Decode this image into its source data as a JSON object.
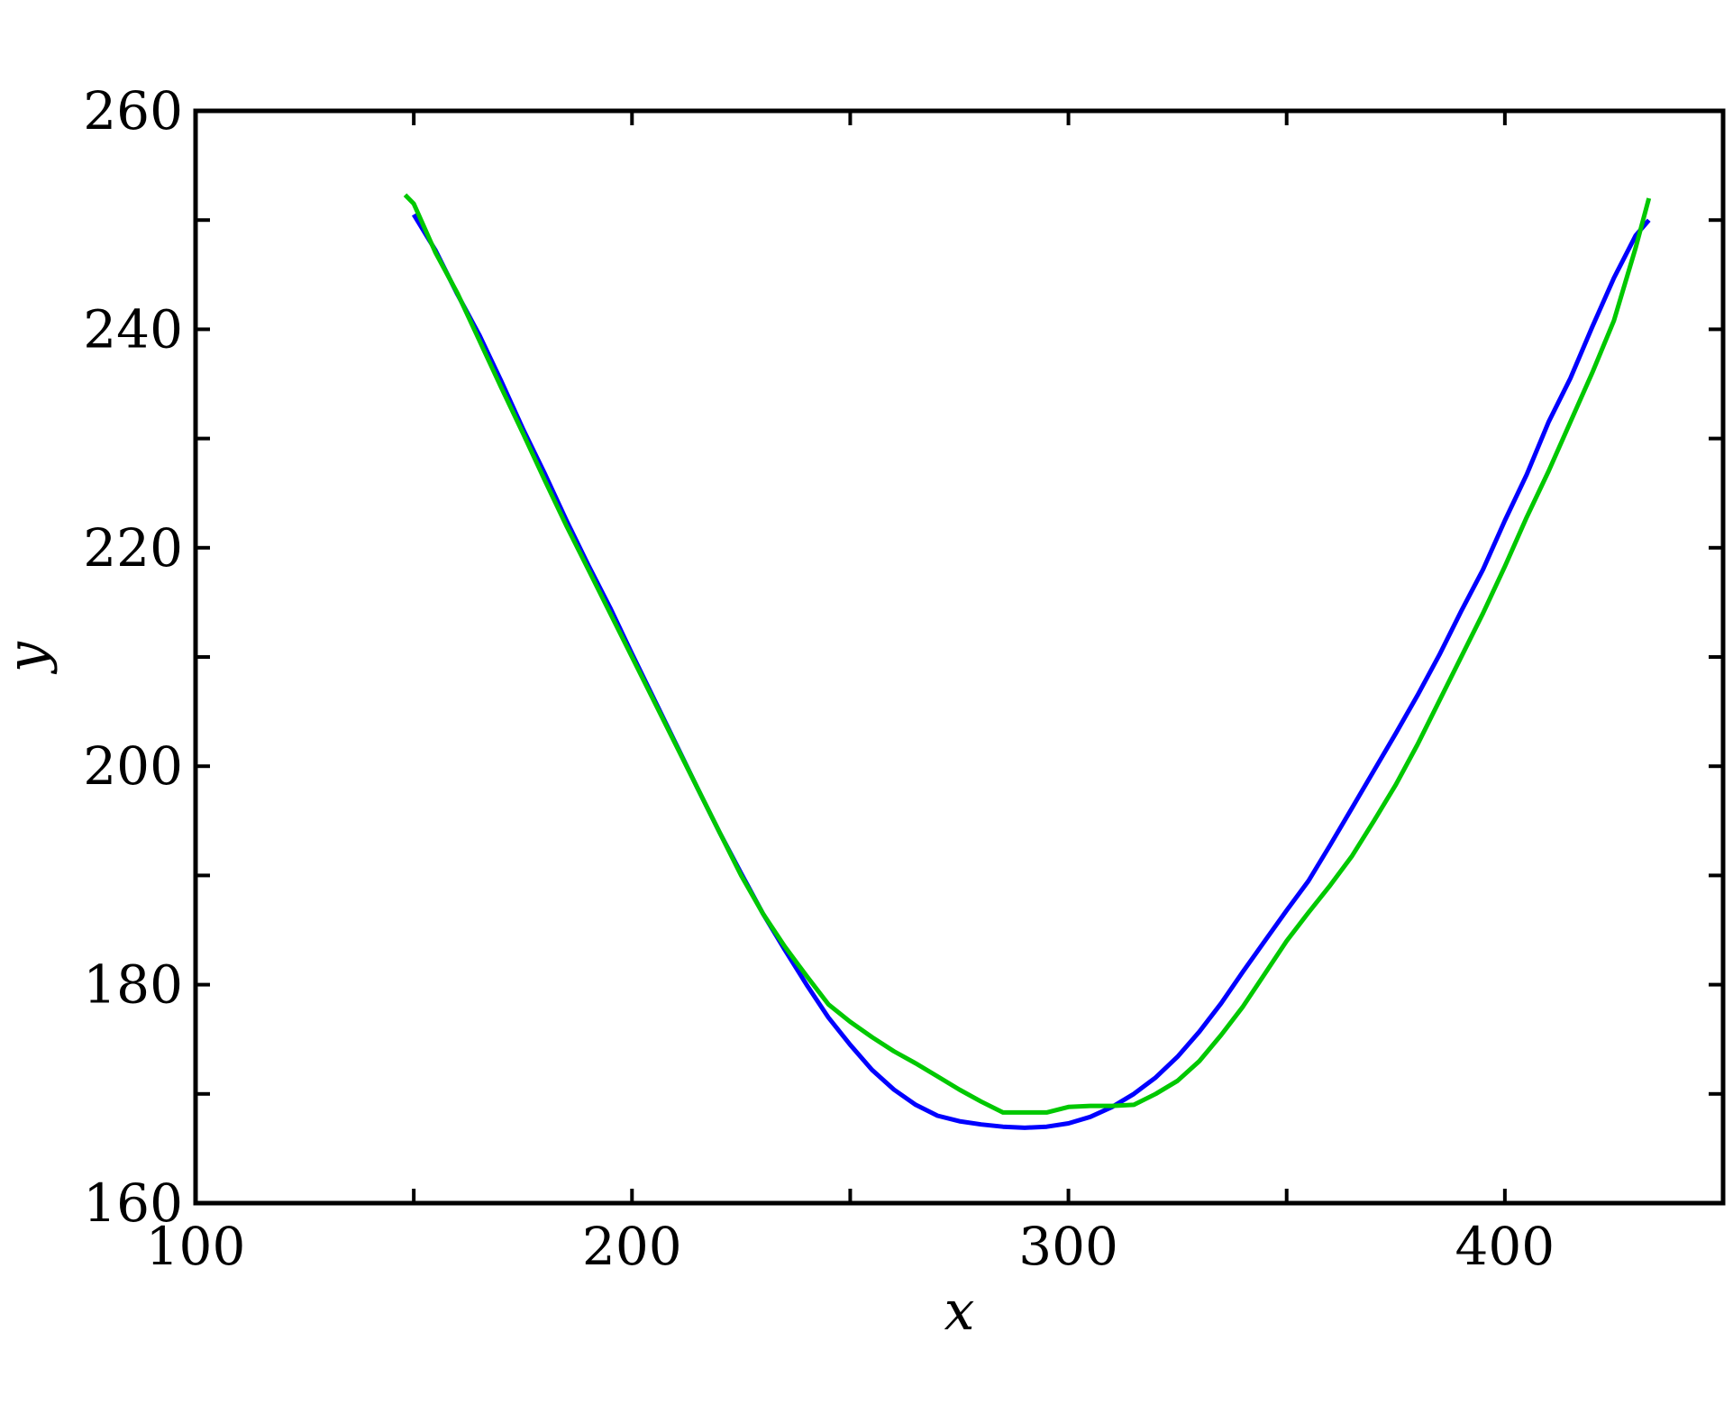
{
  "chart_data": {
    "type": "line",
    "title": "",
    "xlabel": "x",
    "ylabel": "y",
    "xlim": [
      100,
      450
    ],
    "ylim": [
      160,
      260
    ],
    "xticks": [
      100,
      200,
      300,
      400
    ],
    "yticks": [
      160,
      180,
      200,
      220,
      240,
      260
    ],
    "xtick_minor": [
      150,
      250,
      350
    ],
    "ytick_minor": [
      170,
      190,
      210,
      230,
      250
    ],
    "grid": false,
    "legend": "none",
    "series": [
      {
        "color": "#0000ff",
        "x": [
          150,
          155,
          160,
          165,
          170,
          175,
          180,
          185,
          190,
          195,
          200,
          205,
          210,
          215,
          220,
          225,
          230,
          235,
          240,
          245,
          250,
          255,
          260,
          265,
          270,
          275,
          280,
          285,
          290,
          295,
          300,
          305,
          310,
          315,
          320,
          325,
          330,
          335,
          340,
          345,
          350,
          355,
          360,
          365,
          370,
          375,
          380,
          385,
          390,
          395,
          400,
          405,
          410,
          415,
          420,
          425,
          430,
          433
        ],
        "y": [
          250.5,
          247.2,
          243.2,
          239.5,
          235.3,
          230.9,
          226.8,
          222.5,
          218.4,
          214.5,
          210.3,
          206.2,
          202.1,
          198.0,
          194.0,
          190.2,
          186.5,
          183.2,
          180.0,
          177.0,
          174.5,
          172.2,
          170.4,
          169.0,
          168.0,
          167.5,
          167.2,
          167.0,
          166.9,
          167.0,
          167.3,
          167.9,
          168.8,
          170.0,
          171.5,
          173.4,
          175.7,
          178.3,
          181.2,
          184.0,
          186.8,
          189.5,
          192.8,
          196.2,
          199.6,
          203.0,
          206.5,
          210.2,
          214.2,
          218.0,
          222.5,
          226.7,
          231.5,
          235.5,
          240.2,
          244.7,
          248.6,
          250.0
        ]
      },
      {
        "color": "#00c800",
        "x": [
          148,
          150,
          155,
          160,
          165,
          170,
          175,
          180,
          185,
          190,
          195,
          200,
          205,
          210,
          215,
          220,
          225,
          230,
          235,
          240,
          245,
          250,
          255,
          260,
          265,
          270,
          275,
          280,
          285,
          290,
          295,
          300,
          305,
          310,
          315,
          320,
          325,
          330,
          335,
          340,
          345,
          350,
          355,
          360,
          365,
          370,
          375,
          380,
          385,
          390,
          395,
          400,
          405,
          410,
          415,
          420,
          425,
          430,
          433
        ],
        "y": [
          252.3,
          251.5,
          247.0,
          243.3,
          239.0,
          234.7,
          230.5,
          226.2,
          222.0,
          218.0,
          214.0,
          210.0,
          206.0,
          202.0,
          198.0,
          194.0,
          190.0,
          186.5,
          183.5,
          180.8,
          178.2,
          176.6,
          175.2,
          173.9,
          172.8,
          171.6,
          170.4,
          169.3,
          168.3,
          168.3,
          168.3,
          168.8,
          168.9,
          168.9,
          169.0,
          170.0,
          171.2,
          173.0,
          175.4,
          178.0,
          181.0,
          184.0,
          186.6,
          189.1,
          191.8,
          195.0,
          198.3,
          202.0,
          206.0,
          210.0,
          214.0,
          218.3,
          222.8,
          227.0,
          231.5,
          236.0,
          240.8,
          247.5,
          252.0
        ]
      }
    ]
  }
}
